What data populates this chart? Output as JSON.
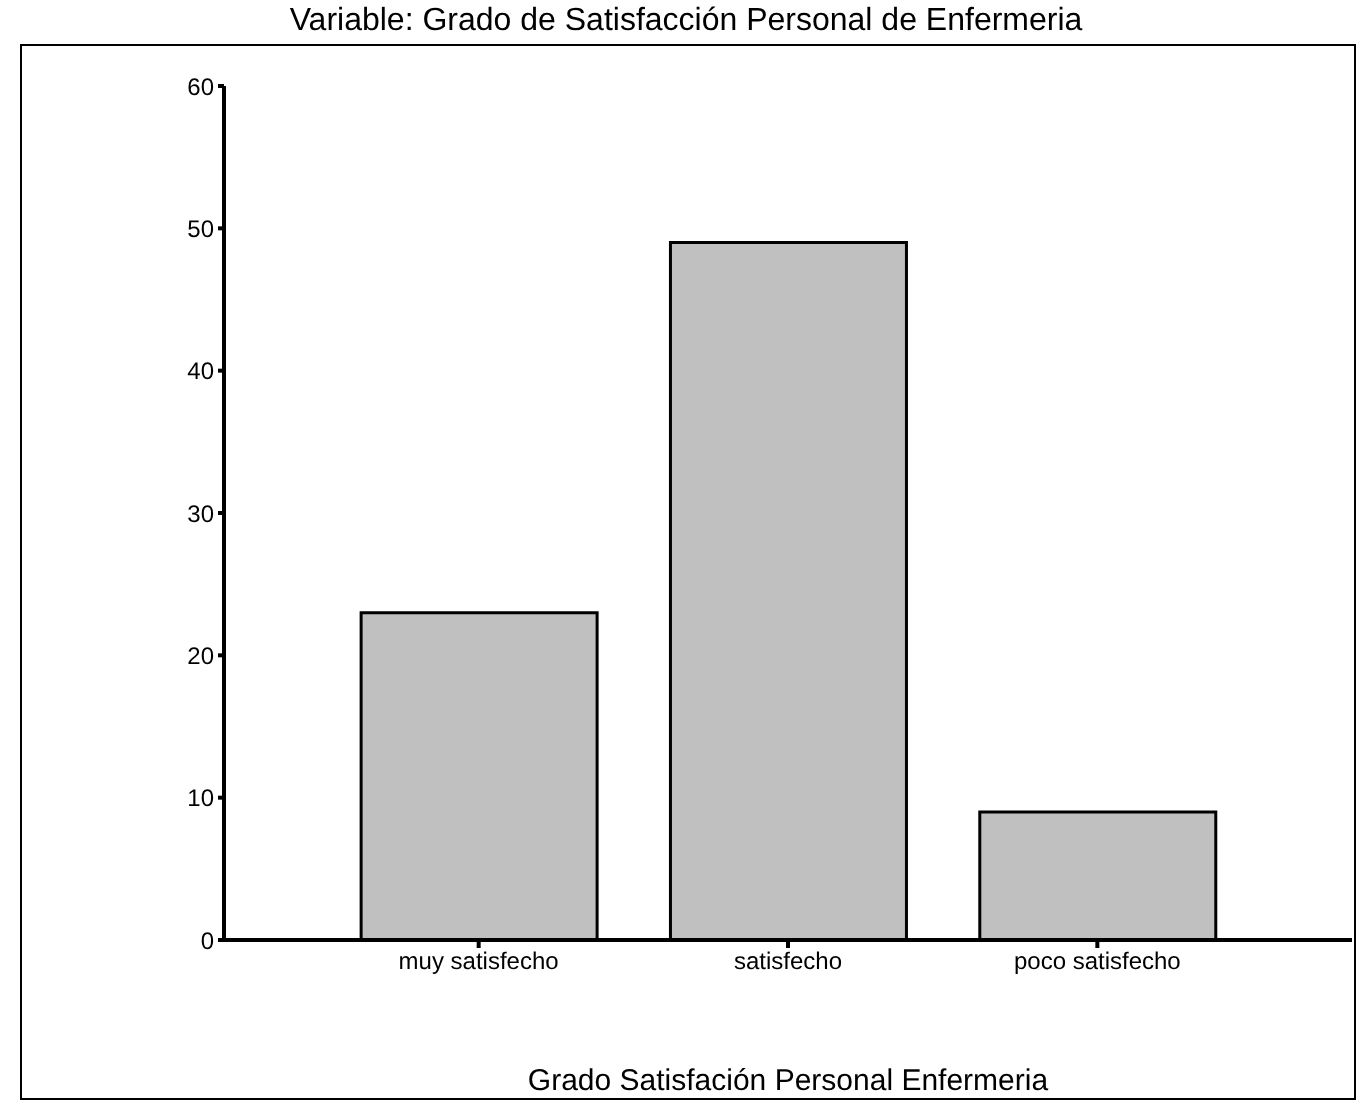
{
  "chart_data": {
    "type": "bar",
    "title": "Variable: Grado de Satisfacción Personal de Enfermeria",
    "xlabel": "Grado Satisfación Personal Enfermeria",
    "categories": [
      "muy satisfecho",
      "satisfecho",
      "poco satisfecho"
    ],
    "values": [
      23,
      49,
      9
    ],
    "color": "#c0c0c0",
    "ylim": [
      0,
      60
    ],
    "yticks": [
      0,
      10,
      20,
      30,
      40,
      50,
      60
    ],
    "grid": false
  }
}
